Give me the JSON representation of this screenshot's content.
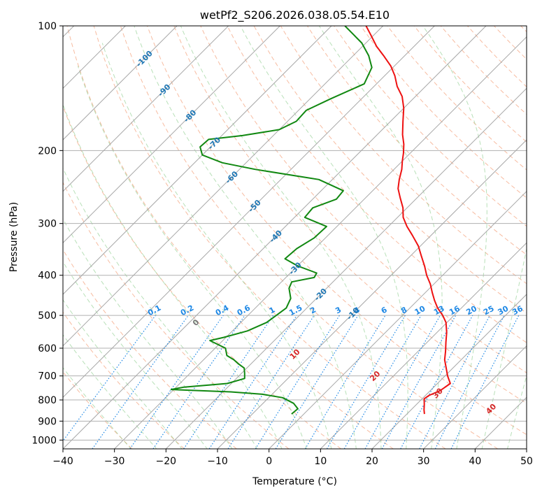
{
  "chart_data": {
    "type": "line",
    "title": "wetPf2_S206.2026.038.05.54.E10",
    "xlabel": "Temperature (°C)",
    "ylabel": "Pressure (hPa)",
    "xlim": [
      -40,
      50
    ],
    "ylim": [
      1050,
      100
    ],
    "y_scale": "log",
    "grid": true,
    "x_ticks": [
      -40,
      -30,
      -20,
      -10,
      0,
      10,
      20,
      30,
      40,
      50
    ],
    "y_ticks": [
      100,
      200,
      300,
      400,
      500,
      600,
      700,
      800,
      900,
      1000
    ],
    "isotherm_labels": [
      -100,
      -90,
      -80,
      -70,
      -60,
      -50,
      -40,
      -30,
      -20,
      -10
    ],
    "mixing_ratio_labels": [
      "0.1",
      "0.2",
      "0.4",
      "0.6",
      "1",
      "1.5",
      "2",
      "3",
      "4",
      "6",
      "8",
      "10",
      "13",
      "16",
      "20",
      "25",
      "30",
      "36"
    ],
    "moist_adiabat_labels": [
      "0",
      "10",
      "20",
      "30",
      "40"
    ],
    "colors": {
      "temperature": "#ee1111",
      "dewpoint": "#118811",
      "isotherm_label": "#1f77b4",
      "mixing_ratio": "#1e88e5",
      "dry_adiabat": "#f4a582",
      "moist_adiabat": "#88cc88",
      "moist_label_zero": "#777777",
      "moist_label": "#d62728"
    },
    "series": [
      {
        "key": "temperature",
        "points": [
          [
            23.4,
            865
          ],
          [
            22.5,
            845
          ],
          [
            21.5,
            820
          ],
          [
            20.4,
            795
          ],
          [
            20.7,
            780
          ],
          [
            21.9,
            760
          ],
          [
            22.5,
            730
          ],
          [
            20.5,
            700
          ],
          [
            18.7,
            670
          ],
          [
            16.8,
            640
          ],
          [
            15.3,
            610
          ],
          [
            13.6,
            580
          ],
          [
            11.9,
            550
          ],
          [
            9.8,
            520
          ],
          [
            7.8,
            500
          ],
          [
            5.4,
            480
          ],
          [
            3.3,
            460
          ],
          [
            1.3,
            440
          ],
          [
            -0.7,
            420
          ],
          [
            -3.1,
            400
          ],
          [
            -5.3,
            380
          ],
          [
            -7.8,
            360
          ],
          [
            -10.4,
            340
          ],
          [
            -13.7,
            320
          ],
          [
            -16.4,
            305
          ],
          [
            -18.9,
            290
          ],
          [
            -20.8,
            275
          ],
          [
            -23.3,
            260
          ],
          [
            -25.5,
            247
          ],
          [
            -27.0,
            235
          ],
          [
            -28.5,
            222
          ],
          [
            -30.0,
            212
          ],
          [
            -31.3,
            203
          ],
          [
            -33.0,
            193
          ],
          [
            -35.1,
            183
          ],
          [
            -37.6,
            170
          ],
          [
            -40.0,
            158
          ],
          [
            -42.6,
            148
          ],
          [
            -45.5,
            140
          ],
          [
            -48.0,
            132
          ],
          [
            -50.7,
            125
          ],
          [
            -54.1,
            118
          ],
          [
            -57.3,
            112
          ],
          [
            -60.7,
            105
          ],
          [
            -63.3,
            100
          ]
        ]
      },
      {
        "key": "dewpoint",
        "points": [
          [
            -2.4,
            865
          ],
          [
            -2.2,
            840
          ],
          [
            -4.1,
            815
          ],
          [
            -7.3,
            790
          ],
          [
            -11.9,
            775
          ],
          [
            -18.5,
            765
          ],
          [
            -30.5,
            755
          ],
          [
            -28.5,
            745
          ],
          [
            -20.8,
            730
          ],
          [
            -18.4,
            710
          ],
          [
            -19.4,
            690
          ],
          [
            -20.5,
            670
          ],
          [
            -22.4,
            655
          ],
          [
            -24.1,
            640
          ],
          [
            -26.3,
            625
          ],
          [
            -28.0,
            600
          ],
          [
            -32.5,
            575
          ],
          [
            -30.4,
            565
          ],
          [
            -27.1,
            545
          ],
          [
            -25.0,
            520
          ],
          [
            -24.5,
            500
          ],
          [
            -24.0,
            480
          ],
          [
            -25.0,
            455
          ],
          [
            -27.3,
            430
          ],
          [
            -28.0,
            415
          ],
          [
            -24.5,
            405
          ],
          [
            -24.9,
            395
          ],
          [
            -29.9,
            380
          ],
          [
            -33.8,
            365
          ],
          [
            -33.5,
            345
          ],
          [
            -32.2,
            325
          ],
          [
            -32.0,
            305
          ],
          [
            -38.0,
            290
          ],
          [
            -38.3,
            275
          ],
          [
            -35.4,
            262
          ],
          [
            -35.7,
            250
          ],
          [
            -42.6,
            235
          ],
          [
            -57.0,
            222
          ],
          [
            -64.6,
            214
          ],
          [
            -70.0,
            205
          ],
          [
            -72.0,
            196
          ],
          [
            -71.8,
            188
          ],
          [
            -66.0,
            184
          ],
          [
            -60.0,
            178
          ],
          [
            -58.3,
            170
          ],
          [
            -58.5,
            160
          ],
          [
            -56.0,
            150
          ],
          [
            -52.4,
            138
          ],
          [
            -54.1,
            126
          ],
          [
            -57.0,
            118
          ],
          [
            -60.8,
            110
          ],
          [
            -64.0,
            105
          ],
          [
            -67.4,
            100
          ]
        ]
      }
    ]
  }
}
